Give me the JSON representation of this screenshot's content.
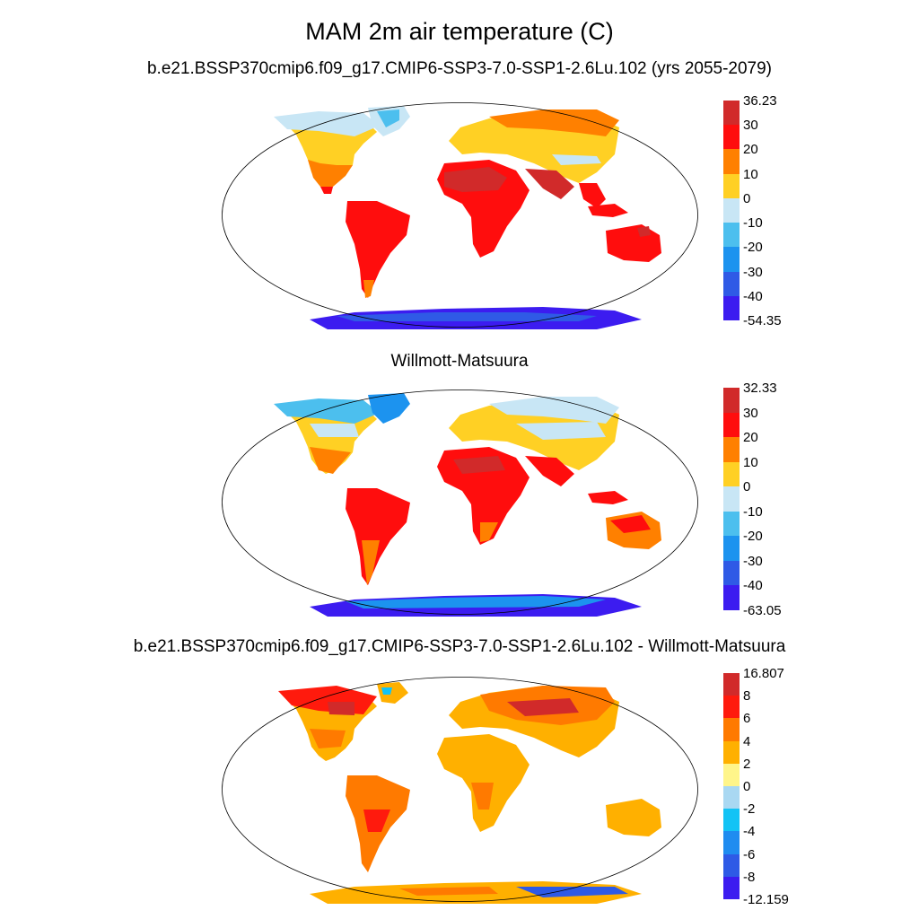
{
  "title": "MAM 2m air temperature (C)",
  "panels": [
    {
      "id": "model",
      "title": "b.e21.BSSP370cmip6.f09_g17.CMIP6-SSP3-7.0-SSP1-2.6Lu.102 (yrs 2055-2079)",
      "colorbar": {
        "labels": [
          "36.23",
          "30",
          "20",
          "10",
          "0",
          "-10",
          "-20",
          "-30",
          "-40",
          "-54.35"
        ],
        "colors": [
          "#d12a2a",
          "#ff0d0d",
          "#ff8000",
          "#ffd024",
          "#c8e6f5",
          "#4cbfee",
          "#1c93ef",
          "#2f5ae6",
          "#3c1cf0"
        ]
      }
    },
    {
      "id": "obs",
      "title": "Willmott-Matsuura",
      "colorbar": {
        "labels": [
          "32.33",
          "30",
          "20",
          "10",
          "0",
          "-10",
          "-20",
          "-30",
          "-40",
          "-63.05"
        ],
        "colors": [
          "#d12a2a",
          "#ff0d0d",
          "#ff8000",
          "#ffd024",
          "#c8e6f5",
          "#4cbfee",
          "#1c93ef",
          "#2f5ae6",
          "#3c1cf0"
        ]
      }
    },
    {
      "id": "diff",
      "title": "b.e21.BSSP370cmip6.f09_g17.CMIP6-SSP3-7.0-SSP1-2.6Lu.102 - Willmott-Matsuura",
      "colorbar": {
        "labels": [
          "16.807",
          "8",
          "6",
          "4",
          "2",
          "0",
          "-2",
          "-4",
          "-6",
          "-8",
          "-12.159"
        ],
        "colors": [
          "#d12a2a",
          "#ff1a0d",
          "#ff7a00",
          "#ffb000",
          "#fff58a",
          "#a9d8f2",
          "#12c3f5",
          "#1f8cf0",
          "#2e5ae6",
          "#3c1cf0"
        ]
      }
    }
  ]
}
